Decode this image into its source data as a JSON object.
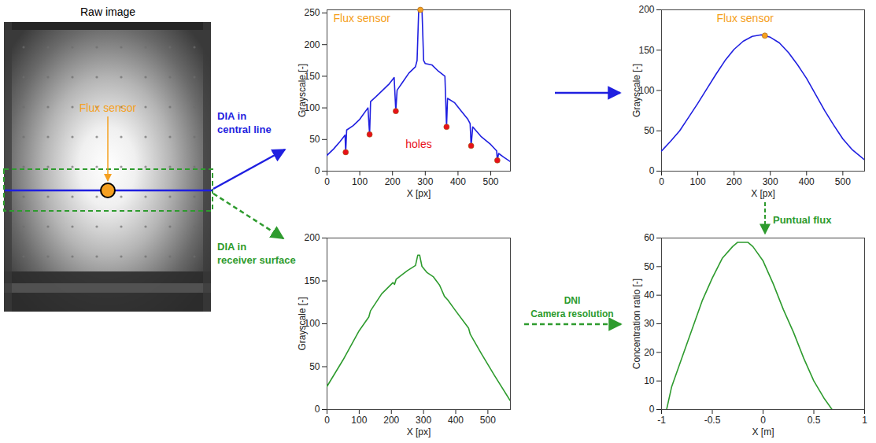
{
  "diagram": {
    "raw_image": {
      "title": "Raw image",
      "label": "Flux sensor",
      "label_color": "#f5a020",
      "line_color": "#1f1fe0",
      "box_color": "#2e9b2e"
    },
    "links": [
      {
        "text": [
          "DIA in",
          "central line"
        ],
        "color": "#1f1fe0"
      },
      {
        "text": [
          "DIA in",
          "receiver surface"
        ],
        "color": "#2e9b2e"
      },
      {
        "text": [
          "DNI",
          "Camera resolution"
        ],
        "color": "#2e9b2e"
      },
      {
        "text": [
          "Puntual flux"
        ],
        "color": "#2e9b2e"
      },
      {
        "color": "#1f1fe0"
      }
    ]
  },
  "chart_data": [
    {
      "type": "line",
      "x_label": "X [px]",
      "y_label": "Grayscale [-]",
      "xlim": [
        0,
        560
      ],
      "ylim": [
        0,
        255
      ],
      "xticks": [
        0,
        100,
        200,
        300,
        400,
        500
      ],
      "yticks": [
        0,
        50,
        100,
        150,
        200,
        250
      ],
      "series": [
        {
          "color": "#1f1fe0",
          "x": [
            0,
            20,
            40,
            55,
            57,
            60,
            80,
            100,
            125,
            130,
            133,
            150,
            170,
            190,
            205,
            210,
            214,
            230,
            250,
            270,
            275,
            280,
            290,
            295,
            300,
            320,
            340,
            360,
            365,
            368,
            390,
            410,
            430,
            437,
            440,
            445,
            470,
            500,
            518,
            520,
            524,
            540,
            560
          ],
          "values": [
            25,
            35,
            47,
            57,
            30,
            65,
            72,
            82,
            100,
            58,
            110,
            118,
            128,
            138,
            148,
            95,
            128,
            140,
            155,
            165,
            175,
            255,
            255,
            175,
            170,
            168,
            158,
            150,
            70,
            115,
            108,
            95,
            82,
            75,
            40,
            70,
            55,
            42,
            32,
            17,
            28,
            22,
            15
          ]
        }
      ],
      "markers": [
        {
          "color": "#e8101a",
          "points": [
            [
              57,
              30
            ],
            [
              130,
              58
            ],
            [
              210,
              95
            ],
            [
              365,
              70
            ],
            [
              440,
              40
            ],
            [
              520,
              17
            ]
          ]
        },
        {
          "color": "#f5a020",
          "points": [
            [
              285,
              255
            ]
          ]
        }
      ],
      "annotations": [
        {
          "text": "Flux sensor",
          "color": "#f5a020"
        },
        {
          "text": "holes",
          "color": "#e8101a"
        }
      ]
    },
    {
      "type": "line",
      "x_label": "X [px]",
      "y_label": "Grayscale [-]",
      "xlim": [
        0,
        560
      ],
      "ylim": [
        0,
        200
      ],
      "xticks": [
        0,
        100,
        200,
        300,
        400,
        500
      ],
      "yticks": [
        0,
        50,
        100,
        150,
        200
      ],
      "series": [
        {
          "color": "#1f1fe0",
          "x": [
            0,
            25,
            50,
            75,
            100,
            125,
            150,
            175,
            200,
            225,
            250,
            275,
            300,
            325,
            350,
            375,
            400,
            425,
            450,
            475,
            500,
            525,
            560
          ],
          "values": [
            25,
            37,
            50,
            67,
            84,
            102,
            120,
            137,
            151,
            161,
            167,
            169,
            166,
            159,
            147,
            132,
            115,
            95,
            75,
            57,
            40,
            27,
            14
          ]
        }
      ],
      "markers": [
        {
          "color": "#f5a020",
          "points": [
            [
              285,
              168
            ]
          ]
        }
      ],
      "annotations": [
        {
          "text": "Flux sensor",
          "color": "#f5a020"
        }
      ]
    },
    {
      "type": "line",
      "x_label": "X [px]",
      "y_label": "Grayscale [-]",
      "xlim": [
        0,
        570
      ],
      "ylim": [
        0,
        200
      ],
      "xticks": [
        0,
        100,
        200,
        300,
        400,
        500
      ],
      "yticks": [
        0,
        50,
        100,
        150,
        200
      ],
      "series": [
        {
          "color": "#2e9b2e",
          "x": [
            0,
            50,
            100,
            130,
            135,
            170,
            205,
            210,
            215,
            250,
            275,
            282,
            288,
            295,
            310,
            330,
            350,
            365,
            375,
            400,
            430,
            440,
            445,
            480,
            520,
            570
          ],
          "values": [
            27,
            58,
            92,
            108,
            115,
            135,
            148,
            146,
            152,
            162,
            168,
            180,
            180,
            167,
            160,
            155,
            145,
            132,
            128,
            115,
            100,
            95,
            88,
            65,
            40,
            10
          ]
        }
      ],
      "markers": [],
      "annotations": []
    },
    {
      "type": "line",
      "x_label": "X [m]",
      "y_label": "Concentration ratio [-]",
      "xlim": [
        -1,
        1
      ],
      "ylim": [
        0,
        60
      ],
      "xticks": [
        -1,
        -0.5,
        0,
        0.5,
        1
      ],
      "yticks": [
        0,
        10,
        20,
        30,
        40,
        50,
        60
      ],
      "series": [
        {
          "color": "#2e9b2e",
          "x": [
            -0.95,
            -0.9,
            -0.8,
            -0.7,
            -0.6,
            -0.5,
            -0.4,
            -0.3,
            -0.25,
            -0.15,
            -0.1,
            0,
            0.1,
            0.2,
            0.3,
            0.4,
            0.5,
            0.6,
            0.68
          ],
          "values": [
            0,
            8,
            18,
            28,
            38,
            46,
            53,
            57,
            58.5,
            58.5,
            57,
            52,
            44,
            35,
            27,
            18,
            10,
            4,
            0
          ]
        }
      ],
      "markers": [],
      "annotations": []
    }
  ]
}
